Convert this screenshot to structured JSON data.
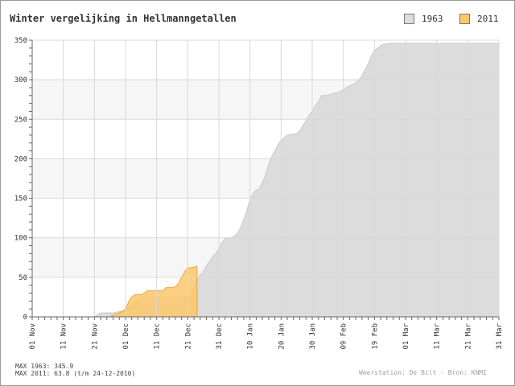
{
  "chart_data": {
    "type": "area",
    "title": "Winter vergelijking in Hellmanngetallen",
    "ylim": [
      0,
      350
    ],
    "yticks": [
      0,
      50,
      100,
      150,
      200,
      250,
      300,
      350
    ],
    "xlim": [
      "1962-11-01",
      "1963-03-31"
    ],
    "xticks": [
      "01 Nov",
      "11 Nov",
      "21 Nov",
      "01 Dec",
      "11 Dec",
      "21 Dec",
      "31 Dec",
      "10 Jan",
      "20 Jan",
      "30 Jan",
      "09 Feb",
      "19 Feb",
      "01 Mar",
      "11 Mar",
      "21 Mar",
      "31 Mar"
    ],
    "grid": true,
    "legend_position": "top-right",
    "series": [
      {
        "name": "1963",
        "color": "#dcdcdc",
        "line_color": "#c8c8c8",
        "x": [
          "1962-11-01",
          "1962-11-21",
          "1962-11-22",
          "1962-11-23",
          "1962-11-24",
          "1962-11-27",
          "1962-11-28",
          "1962-11-30",
          "1962-12-01",
          "1962-12-02",
          "1962-12-03",
          "1962-12-04",
          "1962-12-05",
          "1962-12-06",
          "1962-12-07",
          "1962-12-20",
          "1962-12-21",
          "1962-12-22",
          "1962-12-23",
          "1962-12-24",
          "1962-12-25",
          "1962-12-26",
          "1962-12-27",
          "1962-12-28",
          "1962-12-29",
          "1962-12-30",
          "1962-12-31",
          "1963-01-01",
          "1963-01-02",
          "1963-01-03",
          "1963-01-04",
          "1963-01-05",
          "1963-01-06",
          "1963-01-07",
          "1963-01-08",
          "1963-01-09",
          "1963-01-10",
          "1963-01-11",
          "1963-01-12",
          "1963-01-13",
          "1963-01-14",
          "1963-01-15",
          "1963-01-16",
          "1963-01-17",
          "1963-01-18",
          "1963-01-19",
          "1963-01-20",
          "1963-01-21",
          "1963-01-22",
          "1963-01-23",
          "1963-01-24",
          "1963-01-25",
          "1963-01-26",
          "1963-01-27",
          "1963-01-28",
          "1963-01-29",
          "1963-01-30",
          "1963-01-31",
          "1963-02-01",
          "1963-02-02",
          "1963-02-03",
          "1963-02-04",
          "1963-02-05",
          "1963-02-06",
          "1963-02-07",
          "1963-02-08",
          "1963-02-09",
          "1963-02-10",
          "1963-02-11",
          "1963-02-12",
          "1963-02-13",
          "1963-02-14",
          "1963-02-15",
          "1963-02-16",
          "1963-02-17",
          "1963-02-18",
          "1963-02-19",
          "1963-02-20",
          "1963-02-21",
          "1963-02-22",
          "1963-02-23",
          "1963-02-24",
          "1963-02-25",
          "1963-02-26",
          "1963-02-27",
          "1963-02-28",
          "1963-03-01",
          "1963-03-02",
          "1963-03-31"
        ],
        "values": [
          0,
          0,
          3,
          5,
          5,
          5,
          6,
          7,
          8,
          11,
          15,
          19,
          22,
          24,
          25,
          25,
          26,
          30,
          39,
          47,
          53,
          57,
          64,
          70,
          76,
          80,
          86,
          94,
          99,
          100,
          100,
          102,
          106,
          113,
          123,
          135,
          148,
          156,
          160,
          162,
          170,
          180,
          193,
          203,
          210,
          218,
          223,
          227,
          230,
          231,
          231,
          232,
          235,
          242,
          248,
          255,
          260,
          267,
          272,
          280,
          280,
          280,
          282,
          283,
          283,
          285,
          287,
          290,
          292,
          294,
          296,
          300,
          305,
          313,
          320,
          330,
          337,
          340,
          343,
          345,
          345,
          346,
          346,
          346,
          346,
          346,
          346,
          346,
          346
        ]
      },
      {
        "name": "2011",
        "color": "#fbc86a",
        "line_color": "#e8a83a",
        "x": [
          "2010-11-01",
          "2010-11-26",
          "2010-11-27",
          "2010-11-28",
          "2010-11-29",
          "2010-11-30",
          "2010-12-01",
          "2010-12-02",
          "2010-12-03",
          "2010-12-04",
          "2010-12-05",
          "2010-12-06",
          "2010-12-07",
          "2010-12-08",
          "2010-12-09",
          "2010-12-10",
          "2010-12-11",
          "2010-12-12",
          "2010-12-13",
          "2010-12-14",
          "2010-12-15",
          "2010-12-16",
          "2010-12-17",
          "2010-12-18",
          "2010-12-19",
          "2010-12-20",
          "2010-12-21",
          "2010-12-22",
          "2010-12-23",
          "2010-12-24"
        ],
        "values": [
          0,
          0,
          2,
          3,
          5,
          7,
          10,
          19,
          25,
          28,
          28,
          28,
          30,
          33,
          33,
          33,
          33,
          33,
          33,
          37,
          37,
          37,
          38,
          42,
          50,
          57,
          62,
          62,
          63,
          63.8
        ]
      }
    ]
  },
  "footer": {
    "max_1963": "MAX 1963: 345.9",
    "max_2011": "MAX 2011: 63.8 (t/m 24-12-2010)",
    "source": "Weerstation: De Bilt  -  Bron: KNMI"
  }
}
